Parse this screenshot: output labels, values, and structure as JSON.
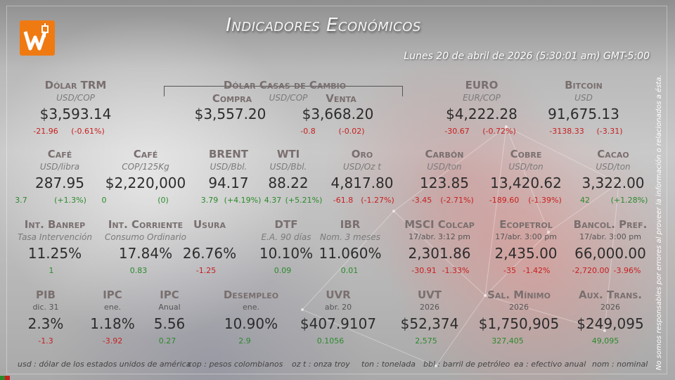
{
  "title": "Indicadores Económicos",
  "date": "Lunes 20 de abril de 2026 (5:30:01 am) GMT-5:00",
  "disclaimer": "No somos responsables por errores al proveer la información o relacionados a ésta.",
  "colors": {
    "logo": "#f07a12",
    "negative": "#c81e1e",
    "positive": "#2a8a2a"
  },
  "row1": {
    "dolar_trm": {
      "label": "Dólar TRM",
      "unit": "USD/COP",
      "value": "$3,593.14",
      "change": "-21.96",
      "pct": "(-0.61%)"
    },
    "casas": {
      "label": "Dólar Casas de Cambio",
      "unit": "USD/COP",
      "compra_label": "Compra",
      "compra_value": "$3,557.20",
      "venta_label": "Venta",
      "venta_value": "$3,668.20",
      "venta_change": "-0.8",
      "venta_pct": "(-0.02)"
    },
    "euro": {
      "label": "EURO",
      "unit": "EUR/COP",
      "value": "$4,222.28",
      "change": "-30.67",
      "pct": "(-0.72%)"
    },
    "bitcoin": {
      "label": "Bitcoin",
      "unit": "USD",
      "value": "91,675.13",
      "change": "-3138.33",
      "pct": "(-3.31)"
    }
  },
  "row2": [
    {
      "label": "Café",
      "unit": "USD/libra",
      "value": "287.95",
      "change": "3.7",
      "pct": "(+1.3%)"
    },
    {
      "label": "Café",
      "unit": "COP/125Kg",
      "value": "$2,220,000",
      "change": "0",
      "pct": "(0)"
    },
    {
      "label": "BRENT",
      "unit": "USD/Bbl.",
      "value": "94.17",
      "change": "3.79",
      "pct": "(+4.19%)"
    },
    {
      "label": "WTI",
      "unit": "USD/Bbl.",
      "value": "88.22",
      "change": "4.37",
      "pct": "(+5.21%)"
    },
    {
      "label": "Oro",
      "unit": "USD/Oz t",
      "value": "4,817.80",
      "change": "-61.8",
      "pct": "(-1.27%)"
    },
    {
      "label": "Carbón",
      "unit": "USD/ton",
      "value": "123.85",
      "change": "-3.45",
      "pct": "(-2.71%)"
    },
    {
      "label": "Cobre",
      "unit": "USD/ton",
      "value": "13,420.62",
      "change": "-189.60",
      "pct": "(-1.39%)"
    },
    {
      "label": "Cacao",
      "unit": "USD/ton",
      "value": "3,322.00",
      "change": "42",
      "pct": "(+1.28%)"
    }
  ],
  "row3": [
    {
      "label": "Int. Banrep",
      "unit": "Tasa Intervención",
      "value": "11.25%",
      "change": "1"
    },
    {
      "label": "Int. Corriente",
      "unit": "Consumo Ordinario",
      "value": "17.84%",
      "change": "0.83"
    },
    {
      "label": "Usura",
      "unit": "",
      "value": "26.76%",
      "change": "-1.25"
    },
    {
      "label": "DTF",
      "unit": "E.A. 90 días",
      "value": "10.10%",
      "change": "0.09"
    },
    {
      "label": "IBR",
      "unit": "Nom. 3 meses",
      "value": "11.060%",
      "change": "0.01"
    },
    {
      "label": "MSCI Colcap",
      "unit": "17/abr. 3:12 pm",
      "value": "2,301.86",
      "change": "-30.91",
      "pct": "-1.33%"
    },
    {
      "label": "Ecopetrol",
      "unit": "17/abr. 3:00 pm",
      "value": "2,435.00",
      "change": "-35",
      "pct": "-1.42%"
    },
    {
      "label": "Bancol. Pref.",
      "unit": "17/abr. 3:00 pm",
      "value": "66,000.00",
      "change": "-2,720.00",
      "pct": "-3.96%"
    }
  ],
  "row4": [
    {
      "label": "PIB",
      "unit": "dic. 31",
      "value": "2.3%",
      "change": "-1.3"
    },
    {
      "label": "IPC",
      "unit": "ene.",
      "value": "1.18%",
      "change": "-3.92"
    },
    {
      "label": "IPC",
      "unit": "Anual",
      "value": "5.56",
      "change": "0.27"
    },
    {
      "label": "Desempleo",
      "unit": "ene.",
      "value": "10.90%",
      "change": "2.9"
    },
    {
      "label": "UVR",
      "unit": "abr. 20",
      "value": "$407.9107",
      "change": "0.1056"
    },
    {
      "label": "UVT",
      "unit": "2026",
      "value": "$52,374",
      "change": "2,575"
    },
    {
      "label": "Sal. Mínimo",
      "unit": "2026",
      "value": "$1,750,905",
      "change": "327,405"
    },
    {
      "label": "Aux. Trans.",
      "unit": "2026",
      "value": "$249,095",
      "change": "49,095"
    }
  ],
  "footer": [
    "usd : dólar de los estados unidos de américa",
    "cop : pesos colombianos",
    "oz t : onza troy",
    "ton : tonelada",
    "bbl : barril de petróleo",
    "ea : efectivo anual",
    "nom : nominal"
  ]
}
